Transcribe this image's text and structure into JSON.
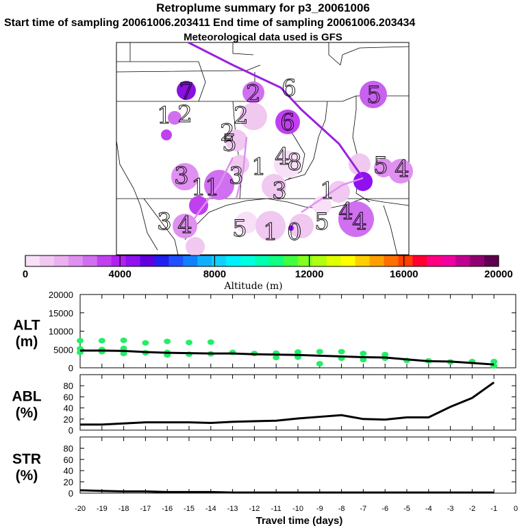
{
  "header": {
    "title": "Retroplume summary for p3_20061006",
    "sampling": "Start time of sampling 20061006.203411     End time of sampling 20061006.203434",
    "met": "Meteorological data used is GFS"
  },
  "colors": {
    "trajectory": "#9a20e0",
    "plume_points": "#22ee66",
    "line": "#000000",
    "map_border": "#000000",
    "colorbar": [
      "#f8e0f8",
      "#f0c8f0",
      "#eab0f0",
      "#e090f0",
      "#d070f0",
      "#c040f0",
      "#b020f0",
      "#9010f0",
      "#6000e0",
      "#2020f0",
      "#2050ff",
      "#1080ff",
      "#10b0ff",
      "#10d0ff",
      "#00f0ff",
      "#00ffe0",
      "#00ffb0",
      "#10ff80",
      "#40ff40",
      "#80ff20",
      "#b0ff10",
      "#e0ff00",
      "#ffff00",
      "#ffd000",
      "#ffa000",
      "#ff7000",
      "#ff4000",
      "#ff0030",
      "#ff0080",
      "#f000a0",
      "#c00090",
      "#900070",
      "#600050"
    ]
  },
  "map": {
    "labels": [
      {
        "t": "7"
      },
      {
        "t": "2"
      },
      {
        "t": "6"
      },
      {
        "t": "5"
      },
      {
        "t": "1"
      },
      {
        "t": "2"
      },
      {
        "t": "2"
      },
      {
        "t": "6"
      },
      {
        "t": "3"
      },
      {
        "t": "2"
      },
      {
        "t": "5"
      },
      {
        "t": "1"
      },
      {
        "t": "8"
      },
      {
        "t": "3"
      },
      {
        "t": "1"
      },
      {
        "t": "1"
      },
      {
        "t": "3"
      },
      {
        "t": "1"
      },
      {
        "t": "3"
      },
      {
        "t": "4"
      },
      {
        "t": "5"
      },
      {
        "t": "1"
      },
      {
        "t": "0"
      },
      {
        "t": "5"
      },
      {
        "t": "4"
      },
      {
        "t": "4"
      },
      {
        "t": "4"
      },
      {
        "t": "5"
      },
      {
        "t": "4"
      }
    ]
  },
  "colorbar": {
    "ticks": [
      "0",
      "4000",
      "8000",
      "12000",
      "16000",
      "20000"
    ],
    "label": "Altitude (m)"
  },
  "chart_data": {
    "type": "line",
    "xlabel": "Travel time (days)",
    "x_ticks": [
      "-20",
      "-19",
      "-18",
      "-17",
      "-16",
      "-15",
      "-14",
      "-13",
      "-12",
      "-11",
      "-10",
      "-9",
      "-8",
      "-7",
      "-6",
      "-5",
      "-4",
      "-3",
      "-2",
      "-1",
      "0"
    ],
    "xlim": [
      -20,
      0
    ],
    "panels": [
      {
        "name": "ALT",
        "label": "ALT",
        "unit": "(m)",
        "ylim": [
          0,
          20000
        ],
        "yticks": [
          "0",
          "5000",
          "10000",
          "15000",
          "20000"
        ],
        "series": {
          "x": [
            -20,
            -19,
            -18,
            -17,
            -16,
            -15,
            -14,
            -13,
            -12,
            -11,
            -10,
            -9,
            -8,
            -7,
            -6,
            -5,
            -4,
            -3,
            -2,
            -1
          ],
          "values": [
            4700,
            4700,
            4600,
            4300,
            4100,
            4000,
            3900,
            3900,
            3700,
            3600,
            3500,
            3300,
            3100,
            2900,
            2800,
            2300,
            1800,
            1700,
            1300,
            900
          ]
        },
        "plume": {
          "x": [
            -20,
            -20,
            -20,
            -19,
            -19,
            -19,
            -18,
            -18,
            -18,
            -17,
            -17,
            -16,
            -16,
            -16,
            -15,
            -15,
            -14,
            -14,
            -13,
            -12,
            -11,
            -11,
            -10,
            -10,
            -9,
            -9,
            -8,
            -8,
            -7,
            -7,
            -6,
            -6,
            -5,
            -4,
            -3,
            -2,
            -1,
            -1
          ],
          "y": [
            7400,
            5200,
            4200,
            7400,
            5000,
            4400,
            7500,
            5300,
            3900,
            6800,
            4100,
            7200,
            4200,
            3500,
            6900,
            3700,
            7000,
            3800,
            4200,
            3900,
            4000,
            2800,
            4300,
            2900,
            4400,
            1100,
            4400,
            2600,
            3900,
            2200,
            3600,
            2600,
            2000,
            1900,
            1600,
            1700,
            1700,
            500
          ]
        }
      },
      {
        "name": "ABL",
        "label": "ABL",
        "unit": "(%)",
        "ylim": [
          0,
          100
        ],
        "yticks": [
          "0",
          "20",
          "40",
          "60",
          "80"
        ],
        "series": {
          "x": [
            -20,
            -19,
            -18,
            -17,
            -16,
            -15,
            -14,
            -13,
            -12,
            -11,
            -10,
            -9,
            -8,
            -7,
            -6,
            -5,
            -4,
            -3,
            -2,
            -1
          ],
          "values": [
            10,
            10,
            12,
            14,
            14,
            14,
            13,
            15,
            16,
            17,
            21,
            24,
            27,
            20,
            19,
            23,
            23,
            42,
            58,
            86
          ]
        }
      },
      {
        "name": "STR",
        "label": "STR",
        "unit": "(%)",
        "ylim": [
          0,
          100
        ],
        "yticks": [
          "0",
          "20",
          "40",
          "60",
          "80"
        ],
        "series": {
          "x": [
            -20,
            -19,
            -18,
            -17,
            -16,
            -15,
            -14,
            -13,
            -12,
            -11,
            -10,
            -9,
            -8,
            -7,
            -6,
            -5,
            -4,
            -3,
            -2,
            -1
          ],
          "values": [
            5,
            4,
            3,
            3,
            2,
            2,
            2,
            1,
            1,
            1,
            1,
            1,
            1,
            1,
            1,
            1,
            1,
            1,
            1,
            1
          ]
        }
      }
    ]
  }
}
